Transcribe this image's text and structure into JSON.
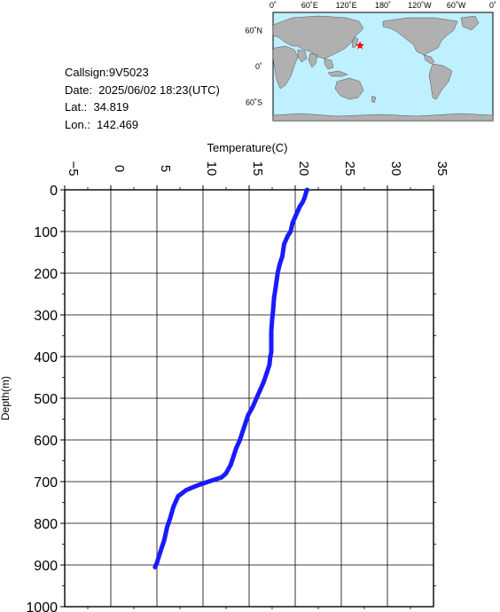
{
  "info": {
    "callsign": "Callsign:9V5023",
    "date": "Date:  2025/06/02 18:23(UTC)",
    "lat": "Lat.:  34.819",
    "lon": "Lon.:  142.469"
  },
  "map": {
    "lon_labels": [
      "0˚",
      "60˚E",
      "120˚E",
      "180˚",
      "120˚W",
      "60˚W",
      "0˚"
    ],
    "lat_labels": [
      "60˚N",
      "0˚",
      "60˚S"
    ],
    "ocean_color": "#bff0ff",
    "land_color": "#b0b0b0",
    "marker_color": "#ff0000",
    "marker": {
      "lat": 34.819,
      "lon": 142.469
    }
  },
  "chart_data": {
    "type": "line",
    "xlabel": "Temperature(C)",
    "ylabel": "Depth(m)",
    "xlim": [
      -5,
      35
    ],
    "ylim": [
      0,
      1000
    ],
    "y_inverted": true,
    "x_axis_position": "top",
    "x_ticks": [
      -5,
      0,
      5,
      10,
      15,
      20,
      25,
      30,
      35
    ],
    "y_ticks": [
      0,
      100,
      200,
      300,
      400,
      500,
      600,
      700,
      800,
      900,
      1000
    ],
    "grid": true,
    "line_color": "#1a1aff",
    "series": [
      {
        "x": [
          21.3,
          21.2,
          21.0,
          20.8,
          20.5,
          20.1,
          19.7,
          19.5,
          19.2,
          18.8,
          18.6,
          18.3,
          18.1,
          17.9,
          17.7,
          17.6,
          17.5,
          17.4,
          17.4,
          17.4,
          17.4,
          17.3,
          17.2,
          16.9,
          16.6,
          16.2,
          15.8,
          15.4,
          14.9,
          14.6,
          14.3,
          14.0,
          13.6,
          13.3,
          13.0,
          12.5,
          12.0,
          10.6,
          9.3,
          8.2,
          7.3,
          6.8,
          6.4,
          6.1,
          5.8,
          5.5,
          5.2,
          5.0,
          4.8
        ],
        "y": [
          0,
          5,
          20,
          30,
          40,
          60,
          80,
          100,
          110,
          130,
          160,
          180,
          200,
          230,
          260,
          290,
          310,
          340,
          360,
          380,
          390,
          400,
          420,
          440,
          460,
          480,
          500,
          520,
          540,
          560,
          580,
          600,
          620,
          640,
          660,
          680,
          690,
          700,
          710,
          720,
          735,
          760,
          790,
          810,
          840,
          860,
          880,
          895,
          905
        ]
      }
    ]
  }
}
